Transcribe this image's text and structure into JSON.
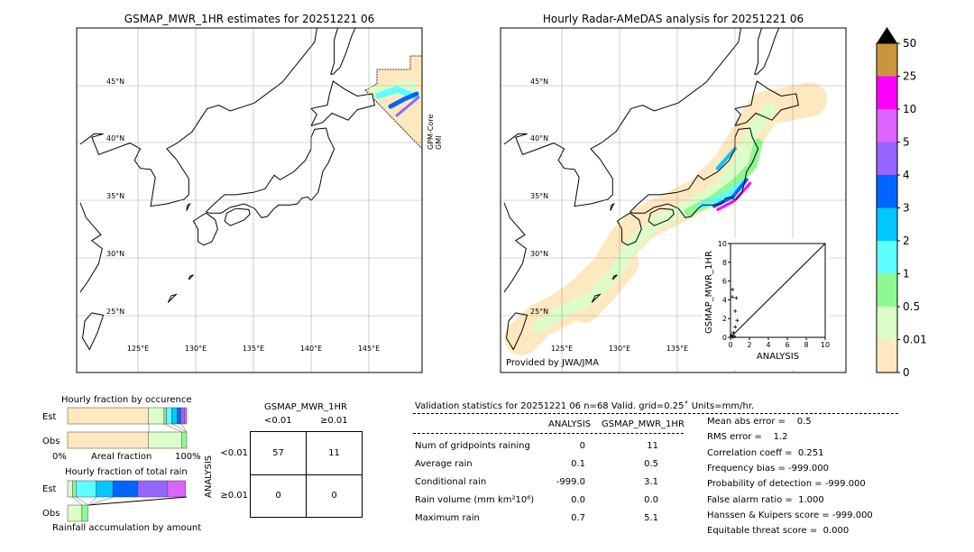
{
  "left_map": {
    "title": "GSMAP_MWR_1HR estimates for 20251221 06",
    "sensor_label": [
      "GPM-Core",
      "GMI"
    ]
  },
  "right_map": {
    "title": "Hourly Radar-AMeDAS analysis for 20251221 06",
    "credit": "Provided by JWA/JMA"
  },
  "lat_labels": [
    "45°N",
    "40°N",
    "35°N",
    "30°N",
    "25°N"
  ],
  "lon_labels": [
    "125°E",
    "130°E",
    "135°E",
    "140°E",
    "145°E"
  ],
  "colorbar": {
    "labels": [
      "0",
      "0.01",
      "0.5",
      "1",
      "2",
      "3",
      "4",
      "5",
      "10",
      "25",
      "50"
    ],
    "colors": [
      "#fee8c0",
      "#dcfcc8",
      "#90f890",
      "#60ffff",
      "#00c8ff",
      "#0064ff",
      "#9664ff",
      "#dc64ff",
      "#ff00ff",
      "#c8963c"
    ],
    "extend": "max"
  },
  "chart_data": [
    {
      "type": "scatter",
      "xlabel": "ANALYSIS",
      "ylabel": "GSMAP_MWR_1HR",
      "xlim": [
        0,
        10
      ],
      "ylim": [
        0,
        10
      ],
      "ticks": [
        "0",
        "2",
        "4",
        "6",
        "8",
        "10"
      ],
      "points": [
        [
          0.2,
          5.1
        ],
        [
          0.6,
          4.2
        ],
        [
          0.2,
          4.3
        ],
        [
          0.5,
          2.8
        ],
        [
          0.7,
          1.8
        ],
        [
          0.5,
          1.1
        ],
        [
          0.3,
          0.5
        ],
        [
          0.1,
          0.2
        ],
        [
          0.4,
          0.1
        ],
        [
          0.2,
          0.0
        ],
        [
          0,
          0
        ]
      ]
    },
    {
      "type": "bar",
      "title": "Hourly fraction by occurence",
      "xlabel": "Areal fraction",
      "x0": "0%",
      "x1": "100%",
      "categories": [
        "Est",
        "Obs"
      ],
      "est": [
        0.68,
        0.13,
        0.02,
        0.045,
        0.045,
        0.03,
        0.03,
        0.02
      ],
      "obs": [
        0.68,
        0.28,
        0.04
      ]
    },
    {
      "type": "bar",
      "title": "Hourly fraction of total rain",
      "xlabel": "Rainfall accumulation by amount",
      "categories": [
        "Est",
        "Obs"
      ],
      "est": [
        0.04,
        0.03,
        0.17,
        0.14,
        0.21,
        0.25,
        0.15
      ],
      "obs": [
        0.12,
        0.05
      ]
    }
  ],
  "contingency": {
    "col_title": "GSMAP_MWR_1HR",
    "row_title": "ANALYSIS",
    "cols": [
      "<0.01",
      "≥0.01"
    ],
    "rows": [
      "<0.01",
      "≥0.01"
    ],
    "cells": [
      [
        "57",
        "11"
      ],
      [
        "0",
        "0"
      ]
    ]
  },
  "validation": {
    "header": "Validation statistics for 20251221 06  n=68 Valid. grid=0.25˚ Units=mm/hr.",
    "col1": "ANALYSIS",
    "col2": "GSMAP_MWR_1HR",
    "rows": [
      {
        "label": "Num of gridpoints raining",
        "a": "0",
        "b": "11"
      },
      {
        "label": "Average rain",
        "a": "0.1",
        "b": "0.5"
      },
      {
        "label": "Conditional rain",
        "a": "-999.0",
        "b": "3.1"
      },
      {
        "label": "Rain volume (mm km²10⁶)",
        "a": "0.0",
        "b": "0.0"
      },
      {
        "label": "Maximum rain",
        "a": "0.7",
        "b": "5.1"
      }
    ],
    "scores": [
      "Mean abs error =    0.5",
      "RMS error =    1.2",
      "Correlation coeff =  0.251",
      "Frequency bias = -999.000",
      "Probability of detection = -999.000",
      "False alarm ratio =  1.000",
      "Hanssen & Kuipers score = -999.000",
      "Equitable threat score =  0.000"
    ]
  }
}
